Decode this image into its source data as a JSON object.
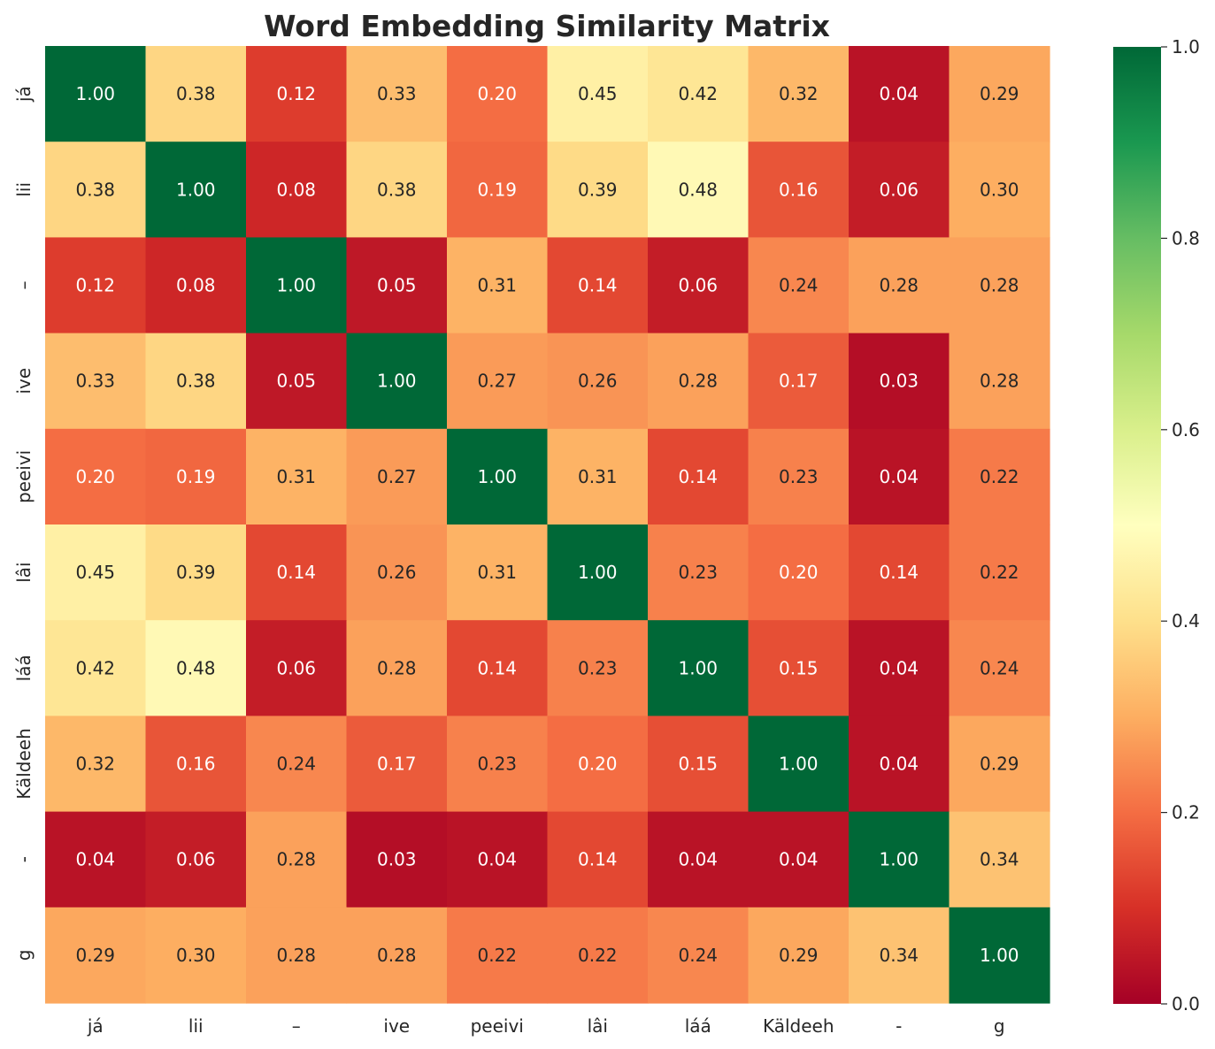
{
  "chart_data": {
    "type": "heatmap",
    "title": "Word Embedding Similarity Matrix",
    "x_labels": [
      "já",
      "lii",
      "–",
      "ive",
      "peeivi",
      "lâi",
      "láá",
      "Käldeeh",
      "-",
      "g"
    ],
    "y_labels": [
      "já",
      "lii",
      "–",
      "ive",
      "peeivi",
      "lâi",
      "láá",
      "Käldeeh",
      "-",
      "g"
    ],
    "values": [
      [
        1.0,
        0.38,
        0.12,
        0.33,
        0.2,
        0.45,
        0.42,
        0.32,
        0.04,
        0.29
      ],
      [
        0.38,
        1.0,
        0.08,
        0.38,
        0.19,
        0.39,
        0.48,
        0.16,
        0.06,
        0.3
      ],
      [
        0.12,
        0.08,
        1.0,
        0.05,
        0.31,
        0.14,
        0.06,
        0.24,
        0.28,
        0.28
      ],
      [
        0.33,
        0.38,
        0.05,
        1.0,
        0.27,
        0.26,
        0.28,
        0.17,
        0.03,
        0.28
      ],
      [
        0.2,
        0.19,
        0.31,
        0.27,
        1.0,
        0.31,
        0.14,
        0.23,
        0.04,
        0.22
      ],
      [
        0.45,
        0.39,
        0.14,
        0.26,
        0.31,
        1.0,
        0.23,
        0.2,
        0.14,
        0.22
      ],
      [
        0.42,
        0.48,
        0.06,
        0.28,
        0.14,
        0.23,
        1.0,
        0.15,
        0.04,
        0.24
      ],
      [
        0.32,
        0.16,
        0.24,
        0.17,
        0.23,
        0.2,
        0.15,
        1.0,
        0.04,
        0.29
      ],
      [
        0.04,
        0.06,
        0.28,
        0.03,
        0.04,
        0.14,
        0.04,
        0.04,
        1.0,
        0.34
      ],
      [
        0.29,
        0.3,
        0.28,
        0.28,
        0.22,
        0.22,
        0.24,
        0.29,
        0.34,
        1.0
      ]
    ],
    "value_format": "0.00",
    "colormap": "RdYlGn",
    "colormap_stops": [
      "#a50026",
      "#d73027",
      "#f46d43",
      "#fdae61",
      "#fee08b",
      "#ffffbf",
      "#d9ef8b",
      "#a6d96a",
      "#66bd63",
      "#1a9850",
      "#006837"
    ],
    "colorbar": {
      "range": [
        0.0,
        1.0
      ],
      "ticks": [
        "0.0",
        "0.2",
        "0.4",
        "0.6",
        "0.8",
        "1.0"
      ]
    },
    "grid": false,
    "legend": "colorbar-right"
  }
}
